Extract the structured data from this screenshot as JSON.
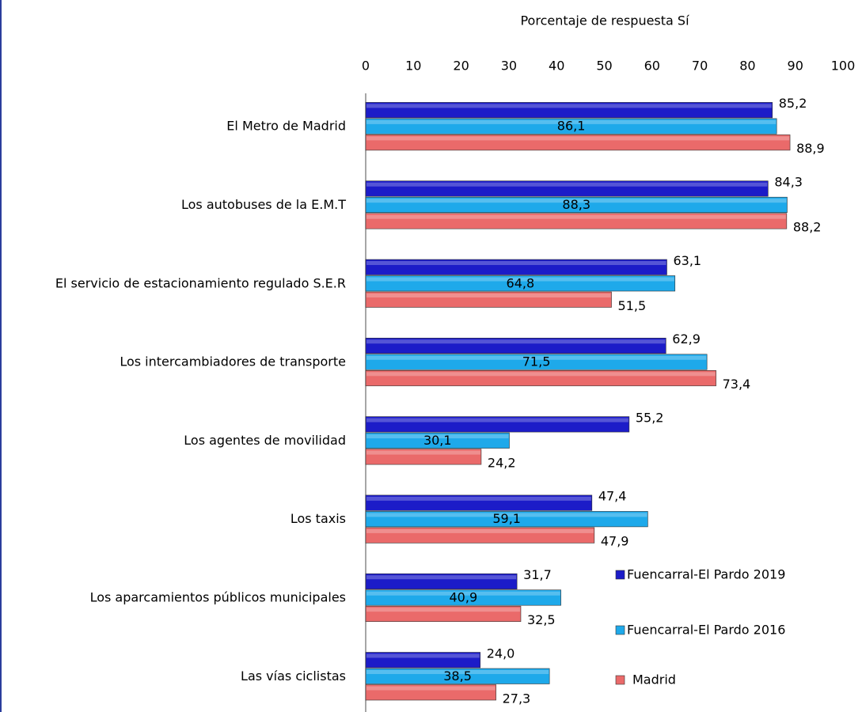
{
  "chart_data": {
    "type": "bar",
    "orientation": "horizontal",
    "x_label": "Porcentaje de respuesta Sí",
    "categories": [
      "El Metro de Madrid",
      "Los autobuses de la E.M.T",
      "El servicio de estacionamiento regulado S.E.R",
      "Los intercambiadores de transporte",
      "Los agentes de movilidad",
      "Los taxis",
      "Los aparcamientos públicos municipales",
      "Las vías ciclistas"
    ],
    "series": [
      {
        "name": "Fuencarral-El Pardo 2019",
        "color": "#1c1cc8",
        "values": [
          85.2,
          84.3,
          63.1,
          62.9,
          55.2,
          47.4,
          31.7,
          24.0
        ],
        "value_labels": [
          "85,2",
          "84,3",
          "63,1",
          "62,9",
          "55,2",
          "47,4",
          "31,7",
          "24,0"
        ]
      },
      {
        "name": "Fuencarral-El Pardo 2016",
        "color": "#1ea9ea",
        "values": [
          86.1,
          88.3,
          64.8,
          71.5,
          30.1,
          59.1,
          40.9,
          38.5
        ],
        "value_labels": [
          "86,1",
          "88,3",
          "64,8",
          "71,5",
          "30,1",
          "59,1",
          "40,9",
          "38,5"
        ]
      },
      {
        "name": "Madrid",
        "color": "#ea6a6a",
        "values": [
          88.9,
          88.2,
          51.5,
          73.4,
          24.2,
          47.9,
          32.5,
          27.3
        ],
        "value_labels": [
          "88,9",
          "88,2",
          "51,5",
          "73,4",
          "24,2",
          "47,9",
          "32,5",
          "27,3"
        ]
      }
    ],
    "xlim": [
      0,
      100
    ],
    "xticks": [
      0,
      10,
      20,
      30,
      40,
      50,
      60,
      70,
      80,
      90,
      100
    ],
    "grid": false,
    "legend": "lower right"
  }
}
